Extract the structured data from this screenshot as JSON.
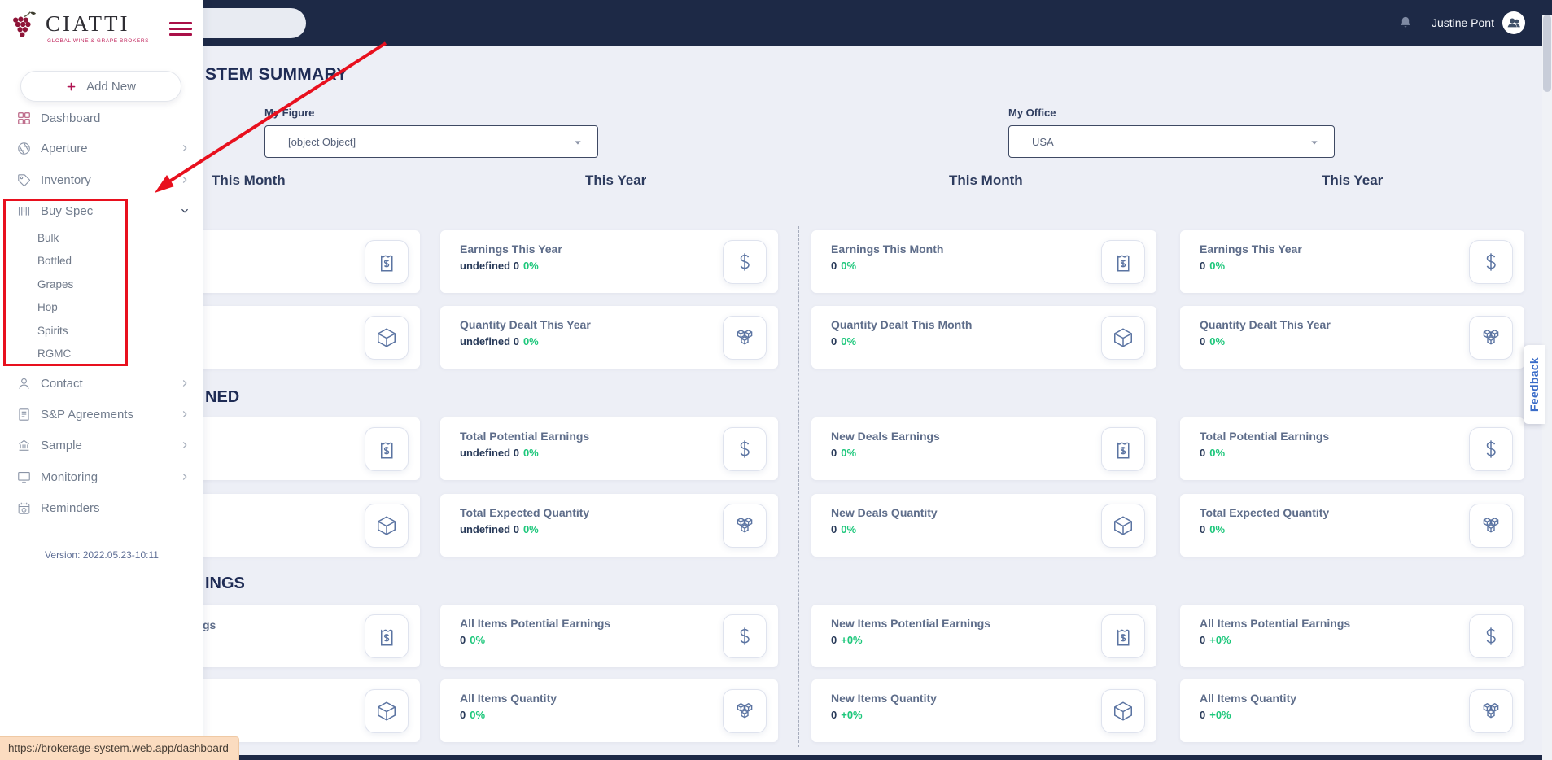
{
  "colors": {
    "topbar": "#1d2946",
    "brand_accent": "#aa1048",
    "positive_green": "#1dc77b",
    "annotation_red": "#e8101e",
    "feedback_blue": "#3a6cc8"
  },
  "topbar": {
    "user_name": "Justine Pont",
    "bell_icon": "bell-icon",
    "avatar_icon": "user-avatar-icon"
  },
  "sidebar": {
    "brand": {
      "name": "CIATTI",
      "tagline": "GLOBAL WINE & GRAPE BROKERS",
      "logo_icon": "grapes-logo-icon"
    },
    "add_new_label": "Add New",
    "items": [
      {
        "label": "Dashboard",
        "icon": "dashboard-icon",
        "chevron": null,
        "active": true
      },
      {
        "label": "Aperture",
        "icon": "aperture-icon",
        "chevron": "right",
        "active": false
      },
      {
        "label": "Inventory",
        "icon": "inventory-tag-icon",
        "chevron": "right",
        "active": false
      },
      {
        "label": "Buy Spec",
        "icon": "buy-spec-barcode-icon",
        "chevron": "down",
        "active": false,
        "expanded": true,
        "children": [
          "Bulk",
          "Bottled",
          "Grapes",
          "Hop",
          "Spirits",
          "RGMC"
        ]
      },
      {
        "label": "Contact",
        "icon": "contact-icon",
        "chevron": "right",
        "active": false
      },
      {
        "label": "S&P Agreements",
        "icon": "agreements-icon",
        "chevron": "right",
        "active": false
      },
      {
        "label": "Sample",
        "icon": "sample-icon",
        "chevron": "right",
        "active": false
      },
      {
        "label": "Monitoring",
        "icon": "monitoring-icon",
        "chevron": "right",
        "active": false
      },
      {
        "label": "Reminders",
        "icon": "reminders-icon",
        "chevron": null,
        "active": false
      }
    ],
    "version": "Version: 2022.05.23-10:11"
  },
  "main": {
    "page_title_visible": "STEM SUMMARY",
    "filters": [
      {
        "label": "My Figure",
        "value": "[object Object]"
      },
      {
        "label": "My Office",
        "value": "USA"
      }
    ],
    "column_headers": [
      "This Month",
      "This Year",
      "This Month",
      "This Year"
    ],
    "sections": [
      {
        "title_visible": "",
        "cards": [
          {
            "col": 0,
            "row": 0,
            "title": "",
            "value": "",
            "percent": "",
            "icon": "receipt-dollar-icon",
            "partial": false
          },
          {
            "col": 1,
            "row": 0,
            "title": "Earnings This Year",
            "value": "undefined 0",
            "percent": "0%",
            "icon": "dollar-icon",
            "partial": false
          },
          {
            "col": 2,
            "row": 0,
            "title": "Earnings This Month",
            "value": "0",
            "percent": "0%",
            "icon": "receipt-dollar-icon",
            "partial": false
          },
          {
            "col": 3,
            "row": 0,
            "title": "Earnings This Year",
            "value": "0",
            "percent": "0%",
            "icon": "dollar-icon",
            "partial": false
          },
          {
            "col": 0,
            "row": 1,
            "title": "",
            "value": "",
            "percent": "",
            "icon": "cube-icon",
            "partial": false
          },
          {
            "col": 1,
            "row": 1,
            "title": "Quantity Dealt This Year",
            "value": "undefined 0",
            "percent": "0%",
            "icon": "cubes-icon",
            "partial": false
          },
          {
            "col": 2,
            "row": 1,
            "title": "Quantity Dealt This Month",
            "value": "0",
            "percent": "0%",
            "icon": "cube-icon",
            "partial": false
          },
          {
            "col": 3,
            "row": 1,
            "title": "Quantity Dealt This Year",
            "value": "0",
            "percent": "0%",
            "icon": "cubes-icon",
            "partial": false
          }
        ]
      },
      {
        "title_visible": "NED",
        "cards": [
          {
            "col": 0,
            "row": 0,
            "title": "",
            "value": "",
            "percent": "",
            "icon": "receipt-dollar-icon",
            "partial": false
          },
          {
            "col": 1,
            "row": 0,
            "title": "Total Potential Earnings",
            "value": "undefined 0",
            "percent": "0%",
            "icon": "dollar-icon",
            "partial": false
          },
          {
            "col": 2,
            "row": 0,
            "title": "New Deals Earnings",
            "value": "0",
            "percent": "0%",
            "icon": "receipt-dollar-icon",
            "partial": false
          },
          {
            "col": 3,
            "row": 0,
            "title": "Total Potential Earnings",
            "value": "0",
            "percent": "0%",
            "icon": "dollar-icon",
            "partial": false
          },
          {
            "col": 0,
            "row": 1,
            "title": "",
            "value": "",
            "percent": "",
            "icon": "cube-icon",
            "partial": false
          },
          {
            "col": 1,
            "row": 1,
            "title": "Total Expected Quantity",
            "value": "undefined 0",
            "percent": "0%",
            "icon": "cubes-icon",
            "partial": false
          },
          {
            "col": 2,
            "row": 1,
            "title": "New Deals Quantity",
            "value": "0",
            "percent": "0%",
            "icon": "cube-icon",
            "partial": false
          },
          {
            "col": 3,
            "row": 1,
            "title": "Total Expected Quantity",
            "value": "0",
            "percent": "0%",
            "icon": "cubes-icon",
            "partial": false
          }
        ]
      },
      {
        "title_visible": "INGS",
        "cards": [
          {
            "col": 0,
            "row": 0,
            "title": "gs",
            "value": "",
            "percent": "",
            "icon": "receipt-dollar-icon",
            "partial": true
          },
          {
            "col": 1,
            "row": 0,
            "title": "All Items Potential Earnings",
            "value": "0",
            "percent": "0%",
            "icon": "dollar-icon",
            "partial": false
          },
          {
            "col": 2,
            "row": 0,
            "title": "New Items Potential Earnings",
            "value": "0",
            "percent": "+0%",
            "icon": "receipt-dollar-icon",
            "partial": false
          },
          {
            "col": 3,
            "row": 0,
            "title": "All Items Potential Earnings",
            "value": "0",
            "percent": "+0%",
            "icon": "dollar-icon",
            "partial": false
          },
          {
            "col": 0,
            "row": 1,
            "title": "",
            "value": "",
            "percent": "",
            "icon": "cube-icon",
            "partial": false
          },
          {
            "col": 1,
            "row": 1,
            "title": "All Items Quantity",
            "value": "0",
            "percent": "0%",
            "icon": "cubes-icon",
            "partial": false
          },
          {
            "col": 2,
            "row": 1,
            "title": "New Items Quantity",
            "value": "0",
            "percent": "+0%",
            "icon": "cube-icon",
            "partial": false
          },
          {
            "col": 3,
            "row": 1,
            "title": "All Items Quantity",
            "value": "0",
            "percent": "+0%",
            "icon": "cubes-icon",
            "partial": false
          }
        ]
      }
    ]
  },
  "feedback_label": "Feedback",
  "status_bar_url": "https://brokerage-system.web.app/dashboard"
}
